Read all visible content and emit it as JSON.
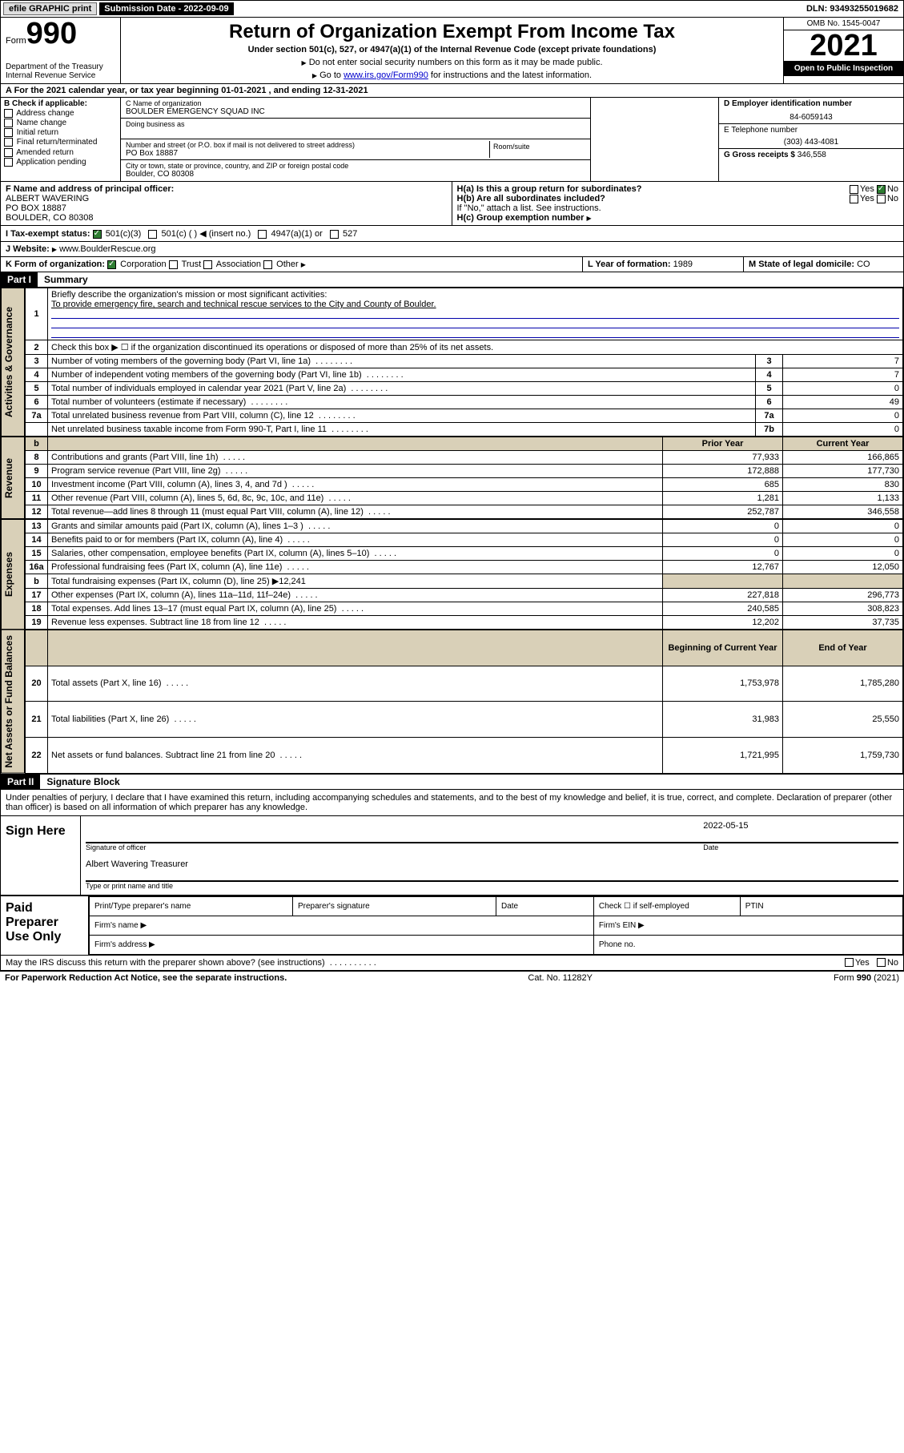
{
  "topbar": {
    "efile": "efile GRAPHIC print",
    "subdate_label": "Submission Date - 2022-09-09",
    "dln": "DLN: 93493255019682"
  },
  "header": {
    "form_label": "Form",
    "form_num": "990",
    "dept": "Department of the Treasury",
    "irs": "Internal Revenue Service",
    "title": "Return of Organization Exempt From Income Tax",
    "subtitle": "Under section 501(c), 527, or 4947(a)(1) of the Internal Revenue Code (except private foundations)",
    "note1": "Do not enter social security numbers on this form as it may be made public.",
    "note2_pre": "Go to ",
    "note2_link": "www.irs.gov/Form990",
    "note2_post": " for instructions and the latest information.",
    "omb": "OMB No. 1545-0047",
    "year": "2021",
    "open_pub": "Open to Public Inspection"
  },
  "rowA": "A For the 2021 calendar year, or tax year beginning 01-01-2021    , and ending 12-31-2021",
  "colB": {
    "title": "B Check if applicable:",
    "items": [
      "Address change",
      "Name change",
      "Initial return",
      "Final return/terminated",
      "Amended return",
      "Application pending"
    ]
  },
  "colC": {
    "name_lbl": "C Name of organization",
    "name": "BOULDER EMERGENCY SQUAD INC",
    "dba_lbl": "Doing business as",
    "addr_lbl": "Number and street (or P.O. box if mail is not delivered to street address)",
    "room_lbl": "Room/suite",
    "addr": "PO Box 18887",
    "city_lbl": "City or town, state or province, country, and ZIP or foreign postal code",
    "city": "Boulder, CO  80308"
  },
  "colD": {
    "ein_lbl": "D Employer identification number",
    "ein": "84-6059143"
  },
  "colE": {
    "tel_lbl": "E Telephone number",
    "tel": "(303) 443-4081",
    "gross_lbl": "G Gross receipts $",
    "gross": "346,558"
  },
  "rowF": {
    "lbl": "F  Name and address of principal officer:",
    "name": "ALBERT WAVERING",
    "addr1": "PO BOX 18887",
    "addr2": "BOULDER, CO  80308"
  },
  "rowH": {
    "ha": "H(a)  Is this a group return for subordinates?",
    "ha_ans": "No",
    "hb": "H(b)  Are all subordinates included?",
    "hb_note": "If \"No,\" attach a list. See instructions.",
    "hc": "H(c)  Group exemption number "
  },
  "rowI": {
    "lbl": "I    Tax-exempt status:",
    "opt1": "501(c)(3)",
    "opt2": "501(c) (   )  ◀ (insert no.)",
    "opt3": "4947(a)(1) or",
    "opt4": "527"
  },
  "rowJ": {
    "lbl": "J    Website: ",
    "val": "www.BoulderRescue.org"
  },
  "rowK": {
    "lbl": "K Form of organization:",
    "opts": [
      "Corporation",
      "Trust",
      "Association",
      "Other"
    ],
    "l_lbl": "L Year of formation:",
    "l_val": "1989",
    "m_lbl": "M State of legal domicile:",
    "m_val": "CO"
  },
  "part1": {
    "hdr": "Part I",
    "title": "Summary",
    "q1_lbl": "Briefly describe the organization's mission or most significant activities:",
    "q1_val": "To provide emergency fire, search and technical rescue services to the City and County of Boulder.",
    "q2": "Check this box ▶ ☐  if the organization discontinued its operations or disposed of more than 25% of its net assets.",
    "rows_gov": [
      {
        "n": "3",
        "d": "Number of voting members of the governing body (Part VI, line 1a)",
        "box": "3",
        "v": "7"
      },
      {
        "n": "4",
        "d": "Number of independent voting members of the governing body (Part VI, line 1b)",
        "box": "4",
        "v": "7"
      },
      {
        "n": "5",
        "d": "Total number of individuals employed in calendar year 2021 (Part V, line 2a)",
        "box": "5",
        "v": "0"
      },
      {
        "n": "6",
        "d": "Total number of volunteers (estimate if necessary)",
        "box": "6",
        "v": "49"
      },
      {
        "n": "7a",
        "d": "Total unrelated business revenue from Part VIII, column (C), line 12",
        "box": "7a",
        "v": "0"
      },
      {
        "n": "",
        "d": "Net unrelated business taxable income from Form 990-T, Part I, line 11",
        "box": "7b",
        "v": "0"
      }
    ],
    "col_py": "Prior Year",
    "col_cy": "Current Year",
    "rows_rev": [
      {
        "n": "8",
        "d": "Contributions and grants (Part VIII, line 1h)",
        "py": "77,933",
        "cy": "166,865"
      },
      {
        "n": "9",
        "d": "Program service revenue (Part VIII, line 2g)",
        "py": "172,888",
        "cy": "177,730"
      },
      {
        "n": "10",
        "d": "Investment income (Part VIII, column (A), lines 3, 4, and 7d )",
        "py": "685",
        "cy": "830"
      },
      {
        "n": "11",
        "d": "Other revenue (Part VIII, column (A), lines 5, 6d, 8c, 9c, 10c, and 11e)",
        "py": "1,281",
        "cy": "1,133"
      },
      {
        "n": "12",
        "d": "Total revenue—add lines 8 through 11 (must equal Part VIII, column (A), line 12)",
        "py": "252,787",
        "cy": "346,558"
      }
    ],
    "rows_exp": [
      {
        "n": "13",
        "d": "Grants and similar amounts paid (Part IX, column (A), lines 1–3 )",
        "py": "0",
        "cy": "0"
      },
      {
        "n": "14",
        "d": "Benefits paid to or for members (Part IX, column (A), line 4)",
        "py": "0",
        "cy": "0"
      },
      {
        "n": "15",
        "d": "Salaries, other compensation, employee benefits (Part IX, column (A), lines 5–10)",
        "py": "0",
        "cy": "0"
      },
      {
        "n": "16a",
        "d": "Professional fundraising fees (Part IX, column (A), line 11e)",
        "py": "12,767",
        "cy": "12,050"
      }
    ],
    "row16b": {
      "n": "b",
      "d": "Total fundraising expenses (Part IX, column (D), line 25) ▶12,241"
    },
    "rows_exp2": [
      {
        "n": "17",
        "d": "Other expenses (Part IX, column (A), lines 11a–11d, 11f–24e)",
        "py": "227,818",
        "cy": "296,773"
      },
      {
        "n": "18",
        "d": "Total expenses. Add lines 13–17 (must equal Part IX, column (A), line 25)",
        "py": "240,585",
        "cy": "308,823"
      },
      {
        "n": "19",
        "d": "Revenue less expenses. Subtract line 18 from line 12",
        "py": "12,202",
        "cy": "37,735"
      }
    ],
    "col_boy": "Beginning of Current Year",
    "col_eoy": "End of Year",
    "rows_na": [
      {
        "n": "20",
        "d": "Total assets (Part X, line 16)",
        "py": "1,753,978",
        "cy": "1,785,280"
      },
      {
        "n": "21",
        "d": "Total liabilities (Part X, line 26)",
        "py": "31,983",
        "cy": "25,550"
      },
      {
        "n": "22",
        "d": "Net assets or fund balances. Subtract line 21 from line 20",
        "py": "1,721,995",
        "cy": "1,759,730"
      }
    ],
    "vlabels": {
      "gov": "Activities & Governance",
      "rev": "Revenue",
      "exp": "Expenses",
      "na": "Net Assets or Fund Balances"
    }
  },
  "part2": {
    "hdr": "Part II",
    "title": "Signature Block",
    "decl": "Under penalties of perjury, I declare that I have examined this return, including accompanying schedules and statements, and to the best of my knowledge and belief, it is true, correct, and complete. Declaration of preparer (other than officer) is based on all information of which preparer has any knowledge.",
    "sign_here": "Sign Here",
    "sig_officer": "Signature of officer",
    "sig_date": "Date",
    "sig_date_val": "2022-05-15",
    "sig_name": "Albert Wavering Treasurer",
    "sig_name_lbl": "Type or print name and title",
    "paid": "Paid Preparer Use Only",
    "p_name": "Print/Type preparer's name",
    "p_sig": "Preparer's signature",
    "p_date": "Date",
    "p_check": "Check ☐ if self-employed",
    "p_ptin": "PTIN",
    "p_firm": "Firm's name   ▶",
    "p_ein": "Firm's EIN ▶",
    "p_addr": "Firm's address ▶",
    "p_phone": "Phone no.",
    "may_discuss": "May the IRS discuss this return with the preparer shown above? (see instructions)",
    "may_yes": "Yes",
    "may_no": "No"
  },
  "footer": {
    "left": "For Paperwork Reduction Act Notice, see the separate instructions.",
    "center": "Cat. No. 11282Y",
    "right": "Form 990 (2021)"
  }
}
